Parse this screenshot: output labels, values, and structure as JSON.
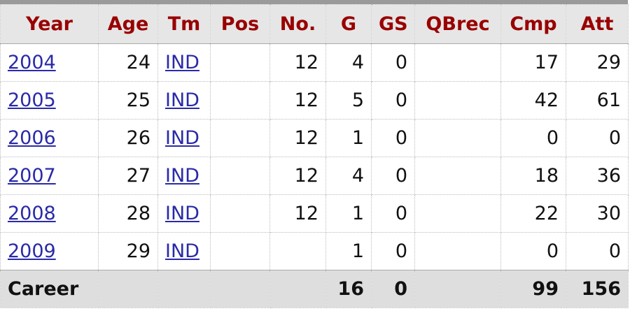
{
  "table": {
    "columns": [
      "Year",
      "Age",
      "Tm",
      "Pos",
      "No.",
      "G",
      "GS",
      "QBrec",
      "Cmp",
      "Att"
    ],
    "rows": [
      [
        "2004",
        24,
        "IND",
        null,
        12,
        4,
        0,
        null,
        17,
        29
      ],
      [
        "2005",
        25,
        "IND",
        null,
        12,
        5,
        0,
        null,
        42,
        61
      ],
      [
        "2006",
        26,
        "IND",
        null,
        12,
        1,
        0,
        null,
        0,
        0
      ],
      [
        "2007",
        27,
        "IND",
        null,
        12,
        4,
        0,
        null,
        18,
        36
      ],
      [
        "2008",
        28,
        "IND",
        null,
        12,
        1,
        0,
        null,
        22,
        30
      ],
      [
        "2009",
        29,
        "IND",
        null,
        null,
        1,
        0,
        null,
        0,
        0
      ]
    ],
    "footer": [
      "Career",
      null,
      null,
      null,
      null,
      16,
      0,
      null,
      99,
      156
    ]
  }
}
